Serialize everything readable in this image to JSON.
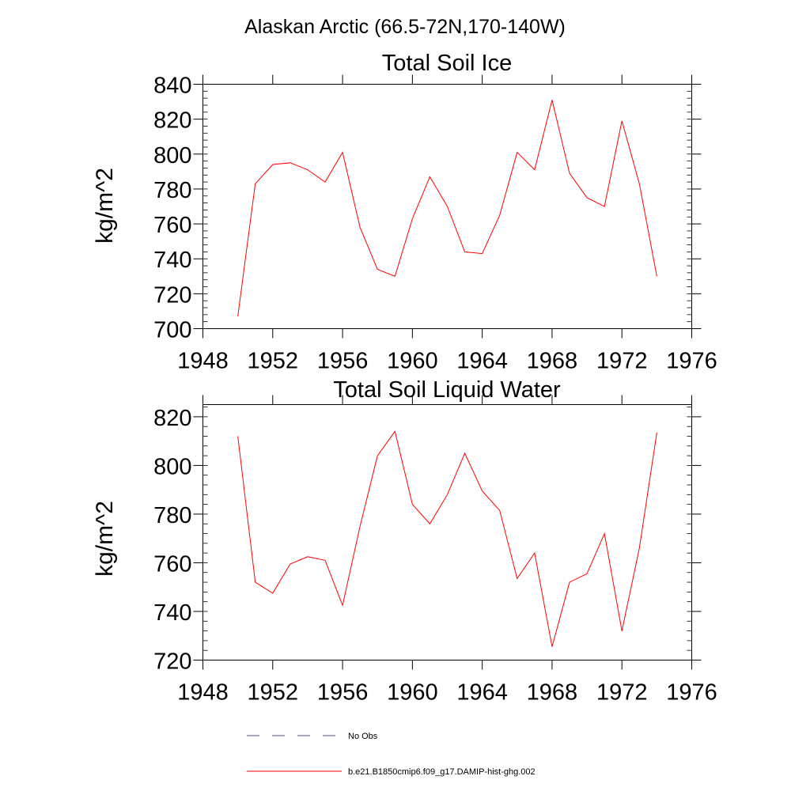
{
  "suptitle": "Alaskan Arctic (66.5-72N,170-140W)",
  "colors": {
    "model": "#ff0000",
    "obs": "#4a5a8a",
    "axis": "#000000"
  },
  "legend": {
    "obs_label": "No Obs",
    "model_label": "b.e21.B1850cmip6.f09_g17.DAMIP-hist-ghg.002"
  },
  "chart_data": [
    {
      "type": "line",
      "title": "Total Soil Ice",
      "ylabel": "kg/m^2",
      "xlabel": "",
      "xlim": [
        1948,
        1976
      ],
      "ylim": [
        700,
        840
      ],
      "xticks": [
        1948,
        1952,
        1956,
        1960,
        1964,
        1968,
        1972,
        1976
      ],
      "yticks": [
        700,
        720,
        740,
        760,
        780,
        800,
        820,
        840
      ],
      "x": [
        1950,
        1951,
        1952,
        1953,
        1954,
        1955,
        1956,
        1957,
        1958,
        1959,
        1960,
        1961,
        1962,
        1963,
        1964,
        1965,
        1966,
        1967,
        1968,
        1969,
        1970,
        1971,
        1972,
        1973,
        1974
      ],
      "series": [
        {
          "name": "b.e21.B1850cmip6.f09_g17.DAMIP-hist-ghg.002",
          "values": [
            707,
            783,
            794,
            795,
            791,
            784,
            801,
            758,
            734,
            730,
            763,
            787,
            770,
            744,
            743,
            765,
            801,
            791,
            831,
            789,
            775,
            770,
            819,
            783,
            730
          ]
        }
      ]
    },
    {
      "type": "line",
      "title": "Total Soil Liquid Water",
      "ylabel": "kg/m^2",
      "xlabel": "",
      "xlim": [
        1948,
        1976
      ],
      "ylim": [
        720,
        825
      ],
      "xticks": [
        1948,
        1952,
        1956,
        1960,
        1964,
        1968,
        1972,
        1976
      ],
      "yticks": [
        720,
        740,
        760,
        780,
        800,
        820
      ],
      "x": [
        1950,
        1951,
        1952,
        1953,
        1954,
        1955,
        1956,
        1957,
        1958,
        1959,
        1960,
        1961,
        1962,
        1963,
        1964,
        1965,
        1966,
        1967,
        1968,
        1969,
        1970,
        1971,
        1972,
        1973,
        1974
      ],
      "series": [
        {
          "name": "b.e21.B1850cmip6.f09_g17.DAMIP-hist-ghg.002",
          "values": [
            812,
            752,
            747.5,
            759.5,
            762.5,
            761,
            742.5,
            775,
            804,
            814,
            784,
            776,
            788,
            805,
            789.5,
            781.5,
            753.5,
            764,
            725.5,
            752,
            755.5,
            772,
            732,
            766,
            813.5
          ]
        }
      ]
    }
  ]
}
